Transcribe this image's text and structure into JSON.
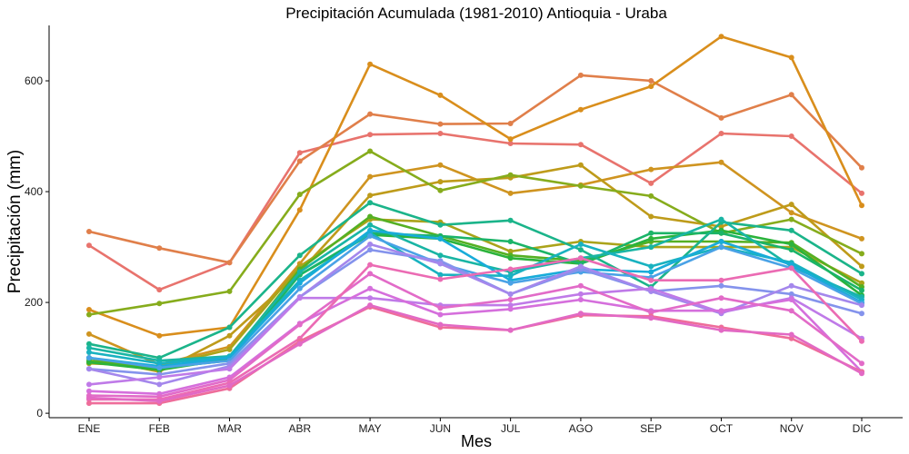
{
  "chart_data": {
    "type": "line",
    "title": "Precipitación Acumulada (1981-2010)  Antioquia - Uraba",
    "xlabel": "Mes",
    "ylabel": "Precipitación  (mm)",
    "categories": [
      "ENE",
      "FEB",
      "MAR",
      "ABR",
      "MAY",
      "JUN",
      "JUL",
      "AGO",
      "SEP",
      "OCT",
      "NOV",
      "DIC"
    ],
    "ylim": [
      -8,
      700
    ],
    "yticks": [
      0,
      200,
      400,
      600
    ],
    "grid": false,
    "legend": "none",
    "series": [
      {
        "color": "#E8736D",
        "values": [
          303,
          223,
          272,
          470,
          503,
          505,
          487,
          485,
          415,
          505,
          500,
          397
        ]
      },
      {
        "color": "#E07F4A",
        "values": [
          328,
          298,
          272,
          455,
          540,
          522,
          523,
          610,
          600,
          533,
          575,
          443
        ]
      },
      {
        "color": "#D98E1C",
        "values": [
          187,
          140,
          155,
          367,
          630,
          574,
          495,
          548,
          590,
          680,
          642,
          375
        ]
      },
      {
        "color": "#CF9420",
        "values": [
          143,
          88,
          120,
          270,
          427,
          448,
          397,
          412,
          440,
          453,
          362,
          315
        ]
      },
      {
        "color": "#BE9B1A",
        "values": [
          100,
          75,
          140,
          255,
          393,
          418,
          425,
          448,
          355,
          337,
          377,
          265
        ]
      },
      {
        "color": "#ABA31A",
        "values": [
          90,
          85,
          115,
          265,
          350,
          345,
          292,
          310,
          300,
          300,
          300,
          235
        ]
      },
      {
        "color": "#86AC1C",
        "values": [
          178,
          198,
          220,
          395,
          473,
          402,
          430,
          410,
          392,
          325,
          350,
          288
        ]
      },
      {
        "color": "#55B023",
        "values": [
          95,
          80,
          100,
          260,
          355,
          320,
          285,
          275,
          310,
          310,
          308,
          228
        ]
      },
      {
        "color": "#2BB33B",
        "values": [
          92,
          78,
          98,
          250,
          322,
          315,
          280,
          270,
          315,
          330,
          305,
          213
        ]
      },
      {
        "color": "#1BB468",
        "values": [
          100,
          82,
          95,
          250,
          325,
          320,
          310,
          270,
          325,
          325,
          295,
          222
        ]
      },
      {
        "color": "#1BB48A",
        "values": [
          125,
          100,
          155,
          285,
          380,
          340,
          348,
          295,
          228,
          345,
          330,
          252
        ]
      },
      {
        "color": "#19B5A4",
        "values": [
          118,
          95,
          103,
          255,
          340,
          285,
          255,
          280,
          300,
          350,
          265,
          210
        ]
      },
      {
        "color": "#19B2C0",
        "values": [
          110,
          90,
          102,
          240,
          325,
          250,
          248,
          305,
          265,
          300,
          272,
          205
        ]
      },
      {
        "color": "#18ACD9",
        "values": [
          100,
          85,
          100,
          235,
          330,
          315,
          240,
          260,
          255,
          310,
          268,
          200
        ]
      },
      {
        "color": "#4AA2E6",
        "values": [
          100,
          82,
          95,
          225,
          320,
          270,
          235,
          255,
          245,
          300,
          262,
          198
        ]
      },
      {
        "color": "#8493EC",
        "values": [
          80,
          70,
          90,
          210,
          295,
          275,
          215,
          260,
          220,
          230,
          215,
          180
        ]
      },
      {
        "color": "#A487EC",
        "values": [
          80,
          52,
          85,
          210,
          305,
          270,
          215,
          265,
          220,
          180,
          230,
          195
        ]
      },
      {
        "color": "#BF7AE8",
        "values": [
          52,
          65,
          80,
          208,
          208,
          195,
          195,
          215,
          225,
          182,
          208,
          135
        ]
      },
      {
        "color": "#D56FDC",
        "values": [
          40,
          35,
          65,
          162,
          225,
          178,
          188,
          205,
          185,
          185,
          205,
          75
        ]
      },
      {
        "color": "#E26BC8",
        "values": [
          32,
          30,
          60,
          160,
          252,
          190,
          205,
          230,
          182,
          208,
          185,
          90
        ]
      },
      {
        "color": "#EB6BB3",
        "values": [
          25,
          25,
          55,
          135,
          268,
          242,
          260,
          280,
          240,
          240,
          262,
          130
        ]
      },
      {
        "color": "#EE6D9A",
        "values": [
          18,
          18,
          45,
          130,
          192,
          155,
          150,
          177,
          175,
          155,
          135,
          75
        ]
      },
      {
        "color": "#E269C4",
        "values": [
          28,
          22,
          50,
          125,
          195,
          160,
          150,
          180,
          172,
          150,
          142,
          72
        ]
      }
    ]
  }
}
